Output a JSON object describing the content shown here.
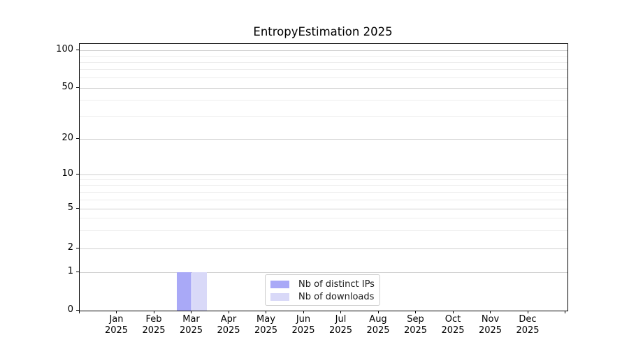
{
  "chart_data": {
    "type": "bar",
    "title": "EntropyEstimation 2025",
    "x_axis": {
      "months": [
        "Jan",
        "Feb",
        "Mar",
        "Apr",
        "May",
        "Jun",
        "Jul",
        "Aug",
        "Sep",
        "Oct",
        "Nov",
        "Dec"
      ],
      "year_label": "2025"
    },
    "y_axis": {
      "scale": "symlog",
      "ticks": [
        0,
        1,
        2,
        5,
        10,
        20,
        50,
        100
      ],
      "minor_ticks": [
        3,
        4,
        6,
        7,
        8,
        9,
        30,
        40,
        60,
        70,
        80,
        90
      ],
      "range": [
        0,
        120
      ]
    },
    "series": [
      {
        "name": "Nb of distinct IPs",
        "color": "#a9a9f7",
        "values": [
          0,
          0,
          1,
          0,
          0,
          0,
          0,
          0,
          0,
          0,
          0,
          0
        ]
      },
      {
        "name": "Nb of downloads",
        "color": "#d9d9f8",
        "values": [
          0,
          0,
          1,
          0,
          0,
          0,
          0,
          0,
          0,
          0,
          0,
          0
        ]
      }
    ],
    "legend": {
      "position": "lower center",
      "border_color": "#cccccc",
      "entries": [
        "Nb of distinct IPs",
        "Nb of downloads"
      ]
    },
    "grid": {
      "major_color": "#cfcfcf",
      "minor_color": "#ededed"
    }
  }
}
